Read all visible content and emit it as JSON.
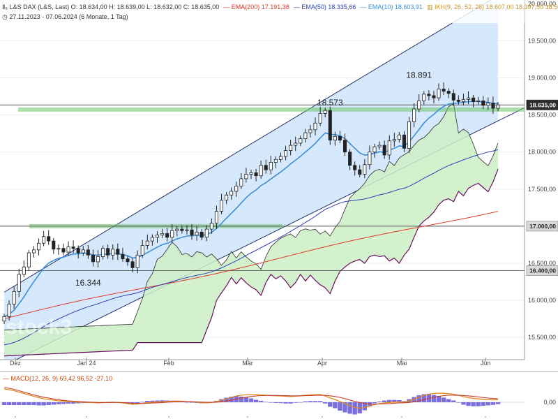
{
  "header": {
    "instrument": "L&S DAX (L&S, Last)",
    "ohlc": "O: 18.634,00  H: 18.639,00  L: 18.632,00  C: 18.635,00",
    "period": "27.11.2023 - 07.06.2024",
    "interval": "(6 Monate, 1 Tag)",
    "ema200": "EMA(200)  17.191,38",
    "ema50": "EMA(50)  18.335,66",
    "ema10": "EMA(10)  18.603,91",
    "ikh": "IKH(9, 26, 52, 26)  18.607,00  18.397,50  18.502,25  18.197,25  18.635,00",
    "macd": "MACD(12, 26, 9)  69,42  96,52  -27,10"
  },
  "colors": {
    "candle": "#222222",
    "ema10": "#3a8fd8",
    "ema50": "#2b3fb5",
    "ema200": "#e0392b",
    "ikh_base": "#6a0d5e",
    "cloud": "#cdeec4",
    "channel_fill": "#d6e8fb",
    "channel_line": "#1f2f6b",
    "support": "#6ac46a",
    "macd_hist": "#7b6fe0",
    "macd_line": "#e08a1e",
    "signal_line": "#c83c2a"
  },
  "chart_data": {
    "type": "candlestick",
    "y_axis": {
      "ticks": [
        "20.000,00",
        "19.500,00",
        "19.000,00",
        "18.500,00",
        "18.000,00",
        "17.500,00",
        "17.000,00",
        "16.500,00",
        "16.000,00",
        "15.500,00"
      ],
      "ylim": [
        15200,
        20050
      ]
    },
    "x_axis": {
      "months": [
        "Dez",
        "Jan 24",
        "Feb",
        "Mär",
        "Apr",
        "Mai",
        "Jun"
      ]
    },
    "price_tags": [
      {
        "value": "18.635,00",
        "style": "dark"
      },
      {
        "value": "17.000,00",
        "style": "light"
      },
      {
        "value": "16.400,00",
        "style": "light"
      }
    ],
    "annotations": [
      "18.891",
      "18.573",
      "16.344"
    ],
    "horizontal_levels": [
      18635,
      17000,
      16400
    ],
    "support_zones": [
      {
        "level": 18573,
        "from": "Dez",
        "to": "Jun"
      },
      {
        "level": 17000,
        "from": "Dez",
        "to": "Mär"
      }
    ],
    "closes": [
      15780,
      15950,
      16120,
      16350,
      16450,
      16640,
      16680,
      16770,
      16860,
      16800,
      16690,
      16700,
      16650,
      16720,
      16700,
      16640,
      16680,
      16610,
      16520,
      16590,
      16700,
      16610,
      16690,
      16620,
      16560,
      16520,
      16440,
      16610,
      16740,
      16800,
      16850,
      16880,
      16900,
      16850,
      16940,
      16960,
      16940,
      16950,
      16880,
      16920,
      16850,
      16960,
      17040,
      17200,
      17350,
      17420,
      17470,
      17540,
      17640,
      17700,
      17720,
      17680,
      17820,
      17760,
      17860,
      17900,
      17940,
      18020,
      18090,
      18120,
      18180,
      18260,
      18300,
      18390,
      18520,
      18560,
      18160,
      18210,
      18160,
      18000,
      17820,
      17760,
      17700,
      17830,
      18000,
      18070,
      18090,
      17960,
      18150,
      18170,
      18230,
      18050,
      18410,
      18580,
      18690,
      18780,
      18760,
      18730,
      18850,
      18820,
      18790,
      18700,
      18680,
      18710,
      18730,
      18680,
      18690,
      18630,
      18660,
      18590,
      18635
    ],
    "macd_panel": {
      "ticks": [
        "0,00"
      ],
      "macd_line": [
        380,
        360,
        330,
        290,
        250,
        210,
        170,
        130,
        100,
        80,
        60,
        40,
        30,
        20,
        10,
        5,
        0,
        -5,
        -10,
        -15,
        -10,
        -5,
        0,
        -5,
        -20,
        -40,
        -60,
        -50,
        -30,
        -10,
        0,
        10,
        20,
        25,
        30,
        35,
        30,
        20,
        10,
        0,
        -10,
        -15,
        -5,
        20,
        60,
        100,
        140,
        180,
        200,
        215,
        220,
        215,
        210,
        200,
        190,
        185,
        180,
        170,
        165,
        175,
        185,
        200,
        210,
        215,
        220,
        180,
        120,
        80,
        20,
        -40,
        -100,
        -150,
        -170,
        -150,
        -110,
        -70,
        -40,
        -20,
        -5,
        5,
        10,
        0,
        40,
        90,
        140,
        190,
        230,
        250,
        260,
        255,
        245,
        230,
        200,
        160,
        130,
        110,
        95,
        85,
        75,
        70,
        69.42
      ],
      "signal_line": [
        420,
        400,
        370,
        330,
        290,
        250,
        210,
        175,
        145,
        120,
        95,
        70,
        55,
        40,
        30,
        20,
        12,
        5,
        0,
        -5,
        -8,
        -8,
        -6,
        -6,
        -10,
        -20,
        -30,
        -35,
        -35,
        -30,
        -22,
        -15,
        -8,
        0,
        8,
        15,
        18,
        18,
        15,
        10,
        5,
        0,
        -3,
        0,
        15,
        35,
        60,
        90,
        120,
        145,
        165,
        180,
        190,
        195,
        195,
        195,
        192,
        188,
        184,
        183,
        184,
        188,
        193,
        198,
        203,
        198,
        185,
        165,
        140,
        105,
        65,
        25,
        -10,
        -35,
        -50,
        -55,
        -50,
        -45,
        -38,
        -28,
        -20,
        -16,
        -5,
        15,
        40,
        75,
        110,
        145,
        170,
        188,
        200,
        205,
        203,
        195,
        182,
        168,
        152,
        136,
        120,
        108,
        96.52
      ]
    }
  }
}
